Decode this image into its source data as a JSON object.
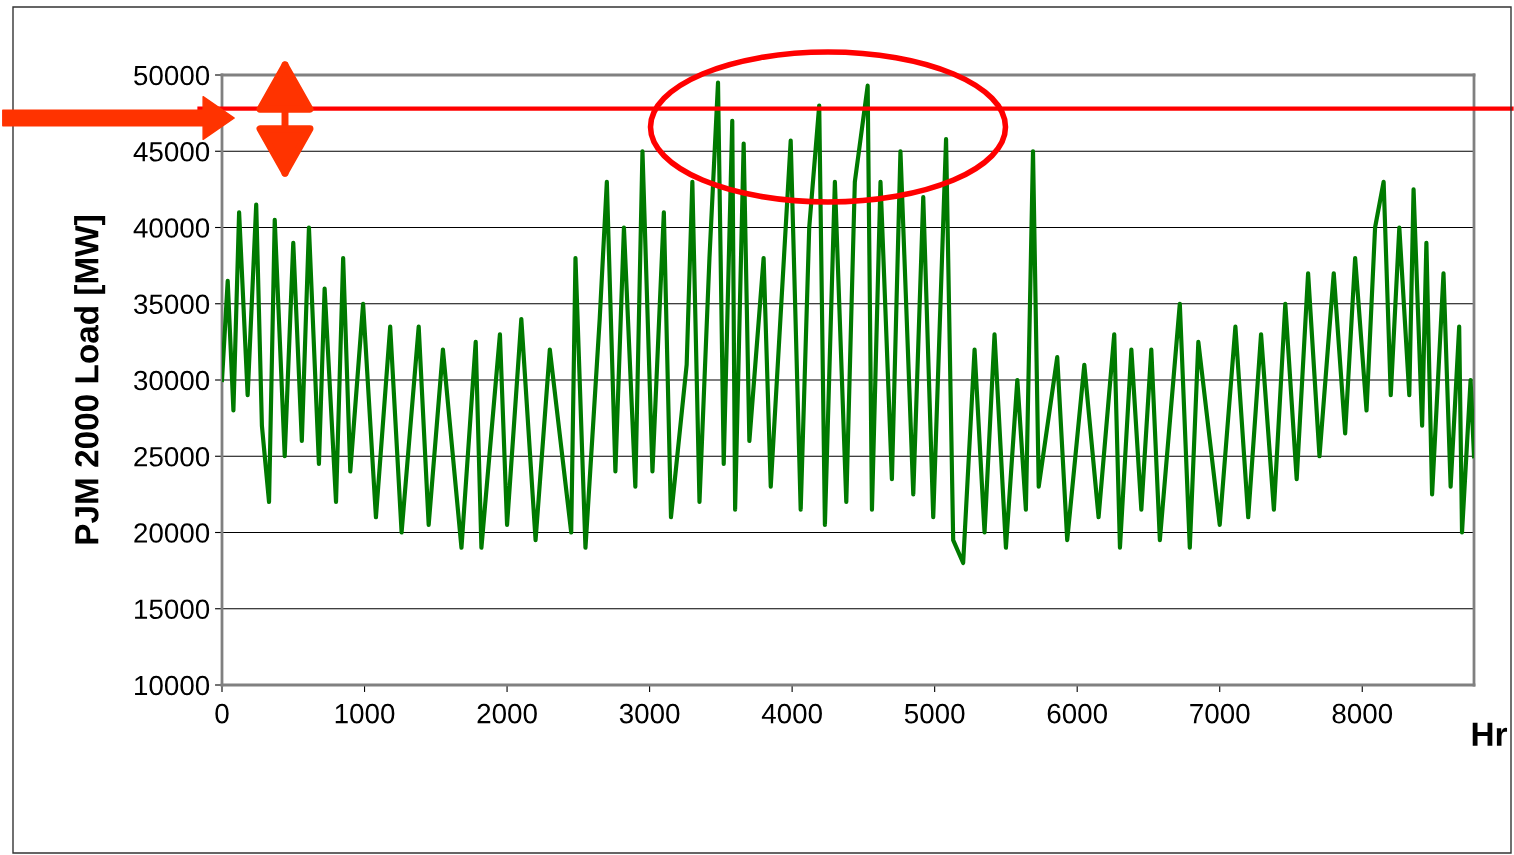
{
  "chart_data": {
    "type": "line",
    "xlabel": "Hr",
    "ylabel": "PJM 2000 Load [MW]",
    "xlim": [
      0,
      8784
    ],
    "xticks": [
      0,
      1000,
      2000,
      3000,
      4000,
      5000,
      6000,
      7000,
      8000
    ],
    "ylim": [
      10000,
      50000
    ],
    "yticks": [
      10000,
      15000,
      20000,
      25000,
      30000,
      35000,
      40000,
      45000,
      50000
    ],
    "grid": "y",
    "marker": "none",
    "line_style": "solid",
    "ref_lines": [
      {
        "axis": "y",
        "value": 47800,
        "color": "#ff0000",
        "line_style": "solid"
      }
    ],
    "series": [
      {
        "color": "#007a00",
        "x": [
          0,
          40,
          80,
          120,
          180,
          240,
          280,
          330,
          370,
          440,
          500,
          560,
          610,
          680,
          720,
          800,
          850,
          900,
          990,
          1080,
          1180,
          1260,
          1380,
          1450,
          1550,
          1680,
          1780,
          1820,
          1950,
          2000,
          2100,
          2200,
          2300,
          2450,
          2480,
          2550,
          2650,
          2700,
          2760,
          2820,
          2900,
          2950,
          3020,
          3100,
          3150,
          3260,
          3300,
          3350,
          3420,
          3480,
          3520,
          3580,
          3600,
          3660,
          3700,
          3800,
          3850,
          3990,
          4060,
          4120,
          4190,
          4230,
          4300,
          4380,
          4440,
          4530,
          4560,
          4620,
          4700,
          4760,
          4850,
          4920,
          4990,
          5080,
          5130,
          5200,
          5280,
          5350,
          5420,
          5500,
          5580,
          5640,
          5690,
          5730,
          5860,
          5930,
          6050,
          6150,
          6260,
          6300,
          6380,
          6450,
          6520,
          6580,
          6720,
          6790,
          6850,
          7000,
          7110,
          7200,
          7290,
          7380,
          7460,
          7540,
          7620,
          7700,
          7800,
          7880,
          7950,
          8030,
          8090,
          8150,
          8200,
          8260,
          8330,
          8360,
          8420,
          8450,
          8490,
          8570,
          8620,
          8680,
          8700,
          8760,
          8784
        ],
        "values": [
          30000,
          36500,
          28000,
          41000,
          29000,
          41500,
          27000,
          22000,
          40500,
          25000,
          39000,
          26000,
          40000,
          24500,
          36000,
          22000,
          38000,
          24000,
          35000,
          21000,
          33500,
          20000,
          33500,
          20500,
          32000,
          19000,
          32500,
          19000,
          33000,
          20500,
          34000,
          19500,
          32000,
          20000,
          38000,
          19000,
          34000,
          43000,
          24000,
          40000,
          23000,
          45000,
          24000,
          41000,
          21000,
          31000,
          43000,
          22000,
          38000,
          49500,
          24500,
          47000,
          21500,
          45500,
          26000,
          38000,
          23000,
          45700,
          21500,
          40000,
          48000,
          20500,
          43000,
          22000,
          43000,
          49300,
          21500,
          43000,
          23500,
          45000,
          22500,
          42000,
          21000,
          45800,
          19500,
          18000,
          32000,
          20000,
          33000,
          19000,
          30000,
          21500,
          45000,
          23000,
          31500,
          19500,
          31000,
          21000,
          33000,
          19000,
          32000,
          21500,
          32000,
          19500,
          35000,
          19000,
          32500,
          20500,
          33500,
          21000,
          33000,
          21500,
          35000,
          23500,
          37000,
          25000,
          37000,
          26500,
          38000,
          28000,
          40000,
          43000,
          29000,
          40000,
          29000,
          42500,
          27000,
          39000,
          22500,
          37000,
          23000,
          33500,
          20000,
          30000,
          25000
        ]
      }
    ]
  }
}
